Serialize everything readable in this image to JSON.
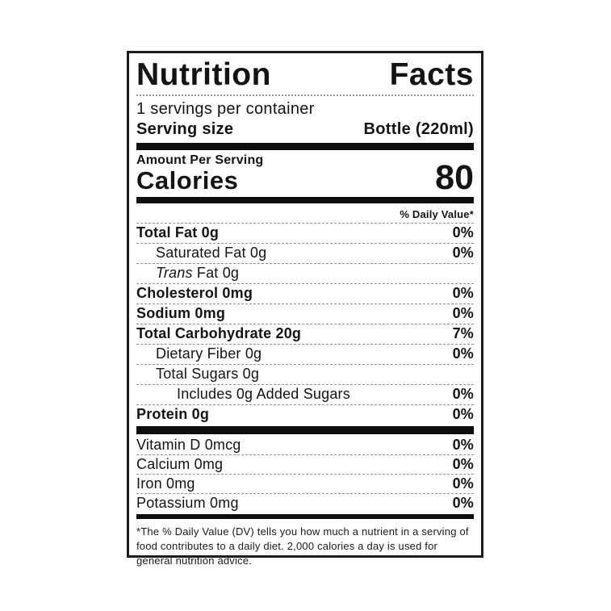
{
  "label": {
    "title_words": {
      "first": "Nutrition",
      "second": "Facts"
    },
    "servings_per_container": "1 servings per container",
    "serving_size_label": "Serving size",
    "serving_size_value": "Bottle (220ml)",
    "amount_per_serving": "Amount Per Serving",
    "calories_label": "Calories",
    "calories_value": "80",
    "daily_value_header": "% Daily Value*",
    "nutrients": [
      {
        "name": "Total Fat 0g",
        "dv": "0%"
      },
      {
        "name": "Saturated Fat 0g",
        "dv": "0%"
      },
      {
        "name_italic": "Trans",
        "name": " Fat 0g",
        "dv": ""
      },
      {
        "name": "Cholesterol 0mg",
        "dv": "0%"
      },
      {
        "name": "Sodium 0mg",
        "dv": "0%"
      },
      {
        "name": "Total Carbohydrate 20g",
        "dv": "7%"
      },
      {
        "name": "Dietary Fiber 0g",
        "dv": "0%"
      },
      {
        "name": "Total Sugars 0g",
        "dv": ""
      },
      {
        "name": "Includes 0g Added Sugars",
        "dv": "0%"
      },
      {
        "name": "Protein 0g",
        "dv": "0%"
      }
    ],
    "vitamins": [
      {
        "name": "Vitamin D 0mcg",
        "dv": "0%"
      },
      {
        "name": "Calcium 0mg",
        "dv": "0%"
      },
      {
        "name": "Iron 0mg",
        "dv": "0%"
      },
      {
        "name": "Potassium 0mg",
        "dv": "0%"
      }
    ],
    "footnote": "*The % Daily Value (DV) tells you how much a nutrient in a serving of food contributes to a daily diet. 2,000 calories a day is used for general nutrition advice.",
    "colors": {
      "ink": "#141414",
      "rule": "#8f8f8f",
      "border": "#1c1c1c"
    }
  }
}
